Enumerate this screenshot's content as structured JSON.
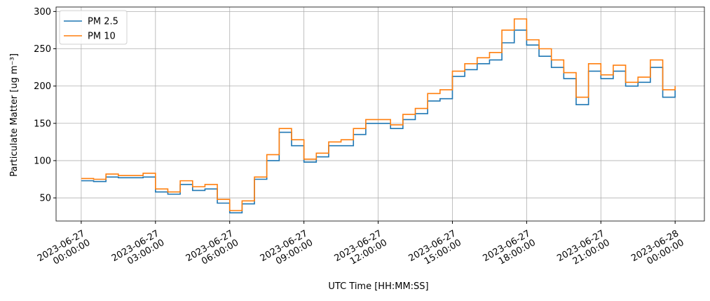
{
  "chart_data": {
    "type": "line",
    "step": true,
    "xlabel": "UTC Time [HH:MM:SS]",
    "ylabel": "Particulate Matter [ug m⁻³]",
    "x": [
      "2023-06-27 00:00:00",
      "2023-06-27 00:30:00",
      "2023-06-27 01:00:00",
      "2023-06-27 01:30:00",
      "2023-06-27 02:00:00",
      "2023-06-27 02:30:00",
      "2023-06-27 03:00:00",
      "2023-06-27 03:30:00",
      "2023-06-27 04:00:00",
      "2023-06-27 04:30:00",
      "2023-06-27 05:00:00",
      "2023-06-27 05:30:00",
      "2023-06-27 06:00:00",
      "2023-06-27 06:30:00",
      "2023-06-27 07:00:00",
      "2023-06-27 07:30:00",
      "2023-06-27 08:00:00",
      "2023-06-27 08:30:00",
      "2023-06-27 09:00:00",
      "2023-06-27 09:30:00",
      "2023-06-27 10:00:00",
      "2023-06-27 10:30:00",
      "2023-06-27 11:00:00",
      "2023-06-27 11:30:00",
      "2023-06-27 12:00:00",
      "2023-06-27 12:30:00",
      "2023-06-27 13:00:00",
      "2023-06-27 13:30:00",
      "2023-06-27 14:00:00",
      "2023-06-27 14:30:00",
      "2023-06-27 15:00:00",
      "2023-06-27 15:30:00",
      "2023-06-27 16:00:00",
      "2023-06-27 16:30:00",
      "2023-06-27 17:00:00",
      "2023-06-27 17:30:00",
      "2023-06-27 18:00:00",
      "2023-06-27 18:30:00",
      "2023-06-27 19:00:00",
      "2023-06-27 19:30:00",
      "2023-06-27 20:00:00",
      "2023-06-27 20:30:00",
      "2023-06-27 21:00:00",
      "2023-06-27 21:30:00",
      "2023-06-27 22:00:00",
      "2023-06-27 22:30:00",
      "2023-06-27 23:00:00",
      "2023-06-27 23:30:00",
      "2023-06-28 00:00:00"
    ],
    "series": [
      {
        "name": "PM 2.5",
        "color": "#1f77b4",
        "values": [
          73,
          72,
          78,
          77,
          77,
          78,
          58,
          55,
          68,
          60,
          62,
          43,
          30,
          42,
          75,
          100,
          138,
          120,
          98,
          105,
          120,
          120,
          135,
          150,
          150,
          143,
          155,
          163,
          180,
          183,
          213,
          222,
          230,
          235,
          258,
          275,
          255,
          240,
          225,
          210,
          175,
          220,
          210,
          220,
          200,
          205,
          225,
          185,
          195
        ]
      },
      {
        "name": "PM 10",
        "color": "#ff7f0e",
        "values": [
          76,
          75,
          82,
          80,
          80,
          83,
          62,
          58,
          73,
          65,
          68,
          48,
          33,
          46,
          78,
          108,
          143,
          128,
          102,
          110,
          125,
          128,
          143,
          155,
          155,
          148,
          162,
          170,
          190,
          195,
          220,
          230,
          238,
          245,
          275,
          290,
          262,
          250,
          235,
          218,
          185,
          230,
          215,
          228,
          205,
          212,
          235,
          195,
          200
        ]
      }
    ],
    "xlim": [
      "2023-06-26 22:59:00",
      "2023-06-28 01:11:00"
    ],
    "xticks": [
      "2023-06-27 00:00:00",
      "2023-06-27 03:00:00",
      "2023-06-27 06:00:00",
      "2023-06-27 09:00:00",
      "2023-06-27 12:00:00",
      "2023-06-27 15:00:00",
      "2023-06-27 18:00:00",
      "2023-06-27 21:00:00",
      "2023-06-28 00:00:00"
    ],
    "ylim": [
      19,
      306
    ],
    "yticks": [
      50,
      100,
      150,
      200,
      250,
      300
    ],
    "grid": true,
    "legend": "upper-left"
  }
}
